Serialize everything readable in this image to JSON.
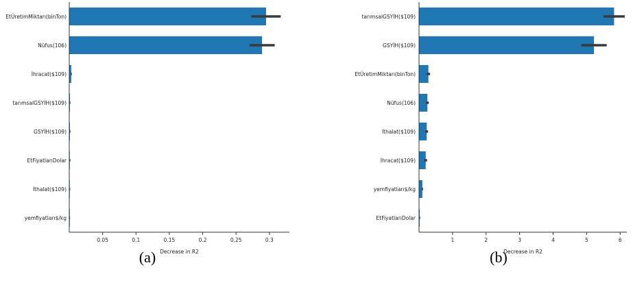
{
  "chart_data": [
    {
      "type": "bar",
      "orientation": "horizontal",
      "caption": "(a)",
      "xlabel": "Decrease in R2",
      "xlim": [
        0,
        0.33
      ],
      "xticks": [
        0.05,
        0.1,
        0.15,
        0.2,
        0.25,
        0.3
      ],
      "xtick_labels": [
        "0.05",
        "0.1",
        "0.15",
        "0.2",
        "0.25",
        "0.3"
      ],
      "categories": [
        "EtÜretimMiktarı(binTon)",
        "Nüfus(106)",
        "İhracat($109)",
        "tarımsalGSYİH($109)",
        "GSYİH($109)",
        "EtFiyatlarıDolar",
        "İthalat($109)",
        "yemfiyatları$/kg"
      ],
      "values": [
        0.295,
        0.289,
        0.003,
        0.001,
        0.001,
        0.0008,
        0.0004,
        0.0002
      ],
      "errors": [
        0.022,
        0.019,
        0.0008,
        0.0003,
        0.0003,
        0.0002,
        0.0001,
        0.0001
      ]
    },
    {
      "type": "bar",
      "orientation": "horizontal",
      "caption": "(b)",
      "xlabel": "Decrease in R2",
      "xlim": [
        0,
        6.2
      ],
      "xticks": [
        1,
        2,
        3,
        4,
        5,
        6
      ],
      "xtick_labels": [
        "1",
        "2",
        "3",
        "4",
        "5",
        "6"
      ],
      "categories": [
        "tarımsalGSYİH($109)",
        "GSYİH($109)",
        "EtÜretimMiktarı(binTon)",
        "Nüfus(106)",
        "İthalat($109)",
        "İhracat($109)",
        "yemfiyatları$/kg",
        "EtFiyatlarıDolar"
      ],
      "values": [
        5.82,
        5.22,
        0.28,
        0.25,
        0.23,
        0.2,
        0.1,
        0.02
      ],
      "errors": [
        0.32,
        0.38,
        0.05,
        0.04,
        0.04,
        0.04,
        0.02,
        0.005
      ]
    }
  ]
}
